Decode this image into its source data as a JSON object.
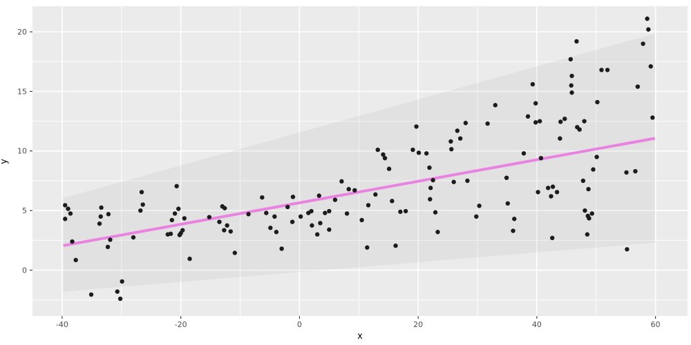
{
  "chart_data": {
    "type": "scatter",
    "title": "",
    "xlabel": "x",
    "ylabel": "y",
    "xlim": [
      -45,
      65.4
    ],
    "ylim": [
      -3.85,
      22.15
    ],
    "x_ticks": [
      -40,
      -20,
      0,
      20,
      40,
      60
    ],
    "x_tick_labels": [
      "-40",
      "-20",
      "0",
      "20",
      "40",
      "60"
    ],
    "y_ticks": [
      0,
      5,
      10,
      15,
      20
    ],
    "y_tick_labels": [
      "0",
      "5",
      "10",
      "15",
      "20"
    ],
    "x_minor_ticks": [
      -30,
      -10,
      10,
      30,
      50
    ],
    "y_minor_ticks": [
      -2.5,
      2.5,
      7.5,
      12.5,
      17.5
    ],
    "grid": "on",
    "legend": "none",
    "panel_bg_color": "#EBEBEB",
    "grid_color": "#FFFFFF",
    "tick_mark_color": "#333333",
    "tick_label_color": "#4D4D4D",
    "point_color": "#1C1C1C",
    "smooth_line": {
      "color": "#E982E0",
      "x": [
        -39.8,
        59.9
      ],
      "y": [
        2.06,
        11.06
      ]
    },
    "ribbon": {
      "fill": "#9E9E9E",
      "opacity": 0.12,
      "upper": [
        [
          -39.8,
          6.05
        ],
        [
          59.9,
          19.85
        ]
      ],
      "lower": [
        [
          -39.8,
          -1.8
        ],
        [
          59.9,
          2.3
        ]
      ]
    },
    "points": [
      [
        -39.5,
        5.45
      ],
      [
        -39.0,
        5.15
      ],
      [
        -38.6,
        4.75
      ],
      [
        -39.5,
        4.3
      ],
      [
        -38.3,
        2.4
      ],
      [
        -37.7,
        0.85
      ],
      [
        -35.1,
        -2.05
      ],
      [
        -33.4,
        5.25
      ],
      [
        -33.5,
        4.5
      ],
      [
        -33.7,
        3.9
      ],
      [
        -32.2,
        4.7
      ],
      [
        -31.9,
        2.55
      ],
      [
        -32.3,
        1.95
      ],
      [
        -29.9,
        -0.95
      ],
      [
        -30.7,
        -1.8
      ],
      [
        -30.2,
        -2.4
      ],
      [
        -26.6,
        6.55
      ],
      [
        -26.4,
        5.5
      ],
      [
        -26.8,
        5.0
      ],
      [
        -28.0,
        2.75
      ],
      [
        -22.2,
        3.0
      ],
      [
        -21.7,
        3.05
      ],
      [
        -21.5,
        4.2
      ],
      [
        -21.0,
        4.75
      ],
      [
        -20.7,
        7.05
      ],
      [
        -20.4,
        5.15
      ],
      [
        -20.2,
        2.95
      ],
      [
        -20.0,
        3.1
      ],
      [
        -19.4,
        4.35
      ],
      [
        -19.7,
        3.35
      ],
      [
        -18.5,
        0.95
      ],
      [
        -15.2,
        4.45
      ],
      [
        -13.0,
        5.35
      ],
      [
        -12.6,
        5.2
      ],
      [
        -13.5,
        4.05
      ],
      [
        -12.2,
        3.75
      ],
      [
        -12.7,
        3.35
      ],
      [
        -11.6,
        3.25
      ],
      [
        -10.9,
        1.45
      ],
      [
        -8.6,
        4.7
      ],
      [
        -6.3,
        6.1
      ],
      [
        -5.6,
        4.8
      ],
      [
        -4.9,
        3.55
      ],
      [
        -4.2,
        4.5
      ],
      [
        -3.9,
        3.2
      ],
      [
        -3.0,
        1.8
      ],
      [
        -2.0,
        5.3
      ],
      [
        -1.2,
        4.05
      ],
      [
        -1.1,
        6.15
      ],
      [
        0.2,
        4.5
      ],
      [
        1.5,
        4.8
      ],
      [
        2.0,
        4.95
      ],
      [
        2.1,
        3.75
      ],
      [
        3.3,
        6.25
      ],
      [
        3.5,
        3.95
      ],
      [
        3.0,
        3.0
      ],
      [
        4.3,
        4.8
      ],
      [
        5.0,
        4.95
      ],
      [
        5.0,
        3.4
      ],
      [
        6.0,
        5.9
      ],
      [
        7.1,
        7.45
      ],
      [
        8.3,
        6.8
      ],
      [
        9.3,
        6.7
      ],
      [
        8.0,
        4.75
      ],
      [
        10.5,
        4.2
      ],
      [
        11.6,
        5.45
      ],
      [
        11.4,
        1.9
      ],
      [
        12.8,
        6.35
      ],
      [
        13.2,
        10.1
      ],
      [
        14.1,
        9.7
      ],
      [
        14.4,
        9.4
      ],
      [
        15.1,
        8.5
      ],
      [
        15.6,
        5.8
      ],
      [
        16.2,
        2.05
      ],
      [
        17.0,
        4.9
      ],
      [
        17.9,
        4.95
      ],
      [
        19.7,
        12.05
      ],
      [
        19.1,
        10.1
      ],
      [
        20.1,
        9.85
      ],
      [
        21.4,
        9.8
      ],
      [
        21.9,
        8.6
      ],
      [
        22.5,
        7.55
      ],
      [
        22.1,
        6.9
      ],
      [
        22.0,
        5.95
      ],
      [
        22.9,
        4.85
      ],
      [
        23.3,
        3.2
      ],
      [
        25.5,
        10.8
      ],
      [
        25.6,
        10.15
      ],
      [
        26.6,
        11.7
      ],
      [
        27.1,
        11.05
      ],
      [
        28.0,
        12.35
      ],
      [
        26.0,
        7.4
      ],
      [
        28.3,
        7.5
      ],
      [
        29.8,
        4.5
      ],
      [
        30.3,
        5.4
      ],
      [
        31.7,
        12.3
      ],
      [
        33.0,
        13.85
      ],
      [
        34.9,
        7.75
      ],
      [
        35.1,
        5.6
      ],
      [
        36.2,
        4.3
      ],
      [
        36.0,
        3.3
      ],
      [
        37.8,
        9.8
      ],
      [
        38.5,
        12.9
      ],
      [
        39.3,
        15.6
      ],
      [
        39.8,
        14.0
      ],
      [
        39.8,
        12.4
      ],
      [
        40.5,
        12.5
      ],
      [
        40.7,
        9.4
      ],
      [
        40.2,
        6.55
      ],
      [
        41.9,
        6.9
      ],
      [
        42.7,
        7.0
      ],
      [
        42.4,
        6.2
      ],
      [
        43.4,
        6.55
      ],
      [
        42.6,
        2.7
      ],
      [
        43.9,
        11.05
      ],
      [
        44.0,
        12.45
      ],
      [
        44.7,
        12.7
      ],
      [
        45.7,
        17.7
      ],
      [
        45.9,
        16.3
      ],
      [
        45.8,
        15.5
      ],
      [
        45.9,
        14.9
      ],
      [
        46.7,
        19.2
      ],
      [
        46.8,
        12.0
      ],
      [
        47.2,
        11.8
      ],
      [
        48.0,
        12.5
      ],
      [
        47.8,
        7.5
      ],
      [
        48.7,
        6.8
      ],
      [
        48.1,
        5.0
      ],
      [
        49.3,
        4.75
      ],
      [
        48.8,
        4.35
      ],
      [
        48.6,
        4.55
      ],
      [
        48.5,
        3.0
      ],
      [
        49.5,
        8.45
      ],
      [
        50.1,
        9.5
      ],
      [
        50.2,
        14.1
      ],
      [
        50.9,
        16.8
      ],
      [
        51.9,
        16.8
      ],
      [
        55.1,
        8.2
      ],
      [
        56.6,
        8.3
      ],
      [
        55.2,
        1.75
      ],
      [
        57.0,
        15.4
      ],
      [
        57.9,
        19.0
      ],
      [
        58.6,
        21.1
      ],
      [
        58.8,
        20.2
      ],
      [
        59.2,
        17.1
      ],
      [
        59.5,
        12.8
      ]
    ]
  }
}
